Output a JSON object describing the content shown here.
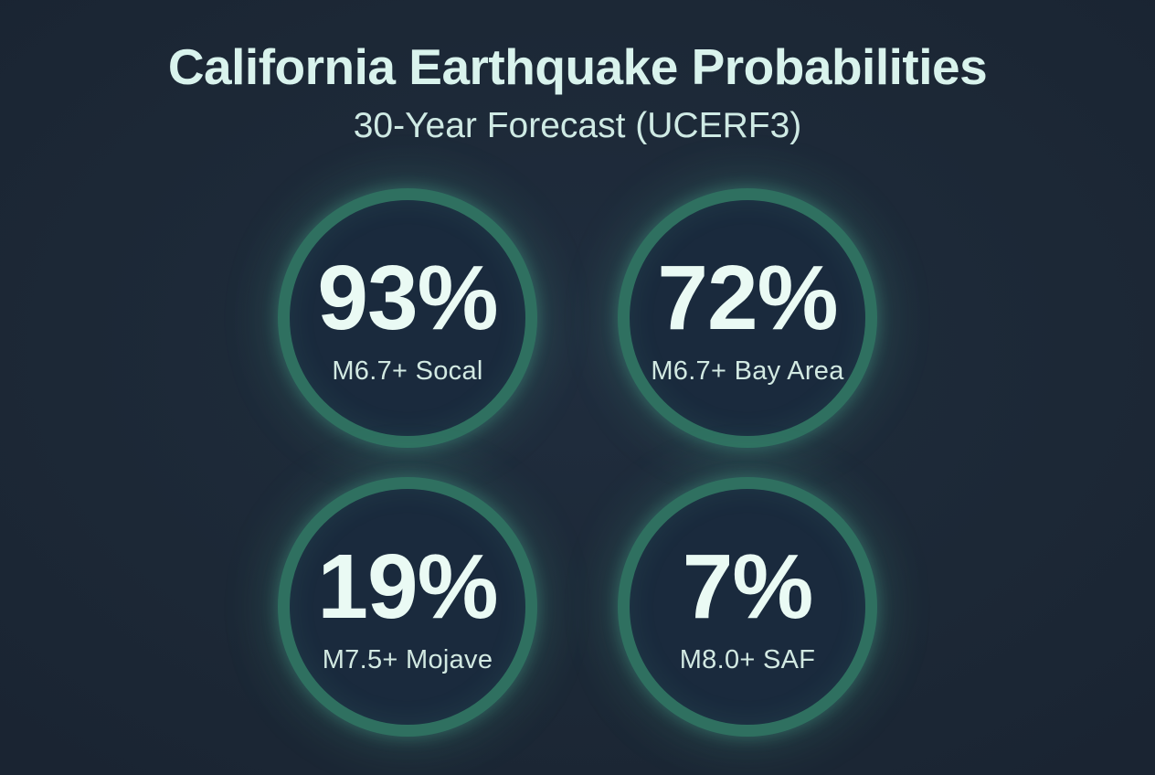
{
  "header": {
    "title": "California Earthquake Probabilities",
    "subtitle": "30-Year Forecast (UCERF3)"
  },
  "stats": [
    {
      "value": "93%",
      "label": "M6.7+ Socal"
    },
    {
      "value": "72%",
      "label": "M6.7+ Bay Area"
    },
    {
      "value": "19%",
      "label": "M7.5+ Mojave"
    },
    {
      "value": "7%",
      "label": "M8.0+ SAF"
    }
  ],
  "colors": {
    "background": "#1c2836",
    "circle_fill": "#1a2a3d",
    "ring_accent": "#2f7060",
    "glow": "rgba(86,196,162,0.22)",
    "title_text": "#d9f3ed",
    "value_text": "#eafaf4",
    "label_text": "#d2e9e2"
  },
  "chart_data": {
    "type": "table",
    "title": "California Earthquake Probabilities",
    "subtitle": "30-Year Forecast (UCERF3)",
    "categories": [
      "M6.7+ Socal",
      "M6.7+ Bay Area",
      "M7.5+ Mojave",
      "M8.0+ SAF"
    ],
    "values": [
      93,
      72,
      19,
      7
    ],
    "unit": "%",
    "layout": "2x2 stat circles, top row: Socal / Bay Area, bottom row: Mojave / SAF"
  }
}
